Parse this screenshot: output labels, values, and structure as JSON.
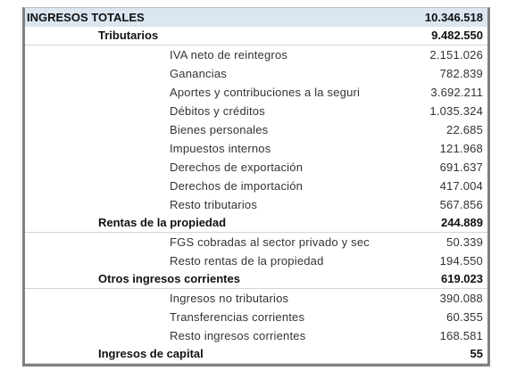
{
  "table": {
    "rows": [
      {
        "label": "INGRESOS TOTALES",
        "value": "10.346.518",
        "level": 0
      },
      {
        "label": "Tributarios",
        "value": "9.482.550",
        "level": 1
      },
      {
        "label": "IVA neto de reintegros",
        "value": "2.151.026",
        "level": 2
      },
      {
        "label": "Ganancias",
        "value": "782.839",
        "level": 2
      },
      {
        "label": "Aportes y contribuciones a la seguri",
        "value": "3.692.211",
        "level": 2
      },
      {
        "label": "Débitos y créditos",
        "value": "1.035.324",
        "level": 2
      },
      {
        "label": "Bienes personales",
        "value": "22.685",
        "level": 2
      },
      {
        "label": "Impuestos internos",
        "value": "121.968",
        "level": 2
      },
      {
        "label": "Derechos de exportación",
        "value": "691.637",
        "level": 2
      },
      {
        "label": "Derechos de importación",
        "value": "417.004",
        "level": 2
      },
      {
        "label": "Resto tributarios",
        "value": "567.856",
        "level": 2
      },
      {
        "label": "Rentas de la propiedad",
        "value": "244.889",
        "level": 1
      },
      {
        "label": "FGS cobradas al sector privado y sec",
        "value": "50.339",
        "level": 2
      },
      {
        "label": "Resto rentas de la propiedad",
        "value": "194.550",
        "level": 2
      },
      {
        "label": "Otros ingresos corrientes",
        "value": "619.023",
        "level": 1
      },
      {
        "label": "Ingresos no tributarios",
        "value": "390.088",
        "level": 2
      },
      {
        "label": "Transferencias corrientes",
        "value": "60.355",
        "level": 2
      },
      {
        "label": "Resto ingresos corrientes",
        "value": "168.581",
        "level": 2
      },
      {
        "label": "Ingresos de capital",
        "value": "55",
        "level": 1
      }
    ]
  }
}
